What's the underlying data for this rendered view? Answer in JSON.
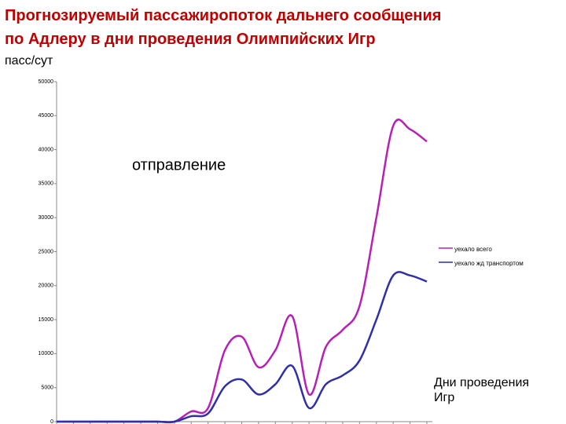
{
  "chart_data": {
    "type": "line",
    "title": [
      "Прогнозируемый пассажиропоток  дальнего сообщения",
      "по Адлеру в дни проведения Олимпийских Игр"
    ],
    "y_label": "пасс/сут",
    "annotations": [
      "отправление",
      "Дни проведения Игр"
    ],
    "categories": [
      null,
      null,
      null,
      null,
      null,
      null,
      null,
      null,
      null,
      null,
      null,
      null,
      null,
      null,
      null,
      null,
      null,
      null,
      null,
      null,
      null,
      null,
      null
    ],
    "series": [
      {
        "name": "уехало всего",
        "color": "#b521b5",
        "values": [
          0,
          0,
          0,
          0,
          0,
          0,
          0,
          0,
          1500,
          2000,
          10500,
          12500,
          8000,
          10500,
          15500,
          4000,
          11000,
          13500,
          17000,
          30000,
          43500,
          43000,
          41200
        ]
      },
      {
        "name": "уехало жд транспортом",
        "color": "#2f2fa8",
        "values": [
          0,
          0,
          0,
          0,
          0,
          0,
          0,
          0,
          800,
          1200,
          5200,
          6200,
          4000,
          5500,
          8200,
          2000,
          5500,
          6800,
          9000,
          15000,
          21500,
          21500,
          20600
        ]
      }
    ],
    "ylim": [
      0,
      50000
    ],
    "yticks": [
      0,
      5000,
      10000,
      15000,
      20000,
      25000,
      30000,
      35000,
      40000,
      45000,
      50000
    ],
    "legend": "right"
  }
}
